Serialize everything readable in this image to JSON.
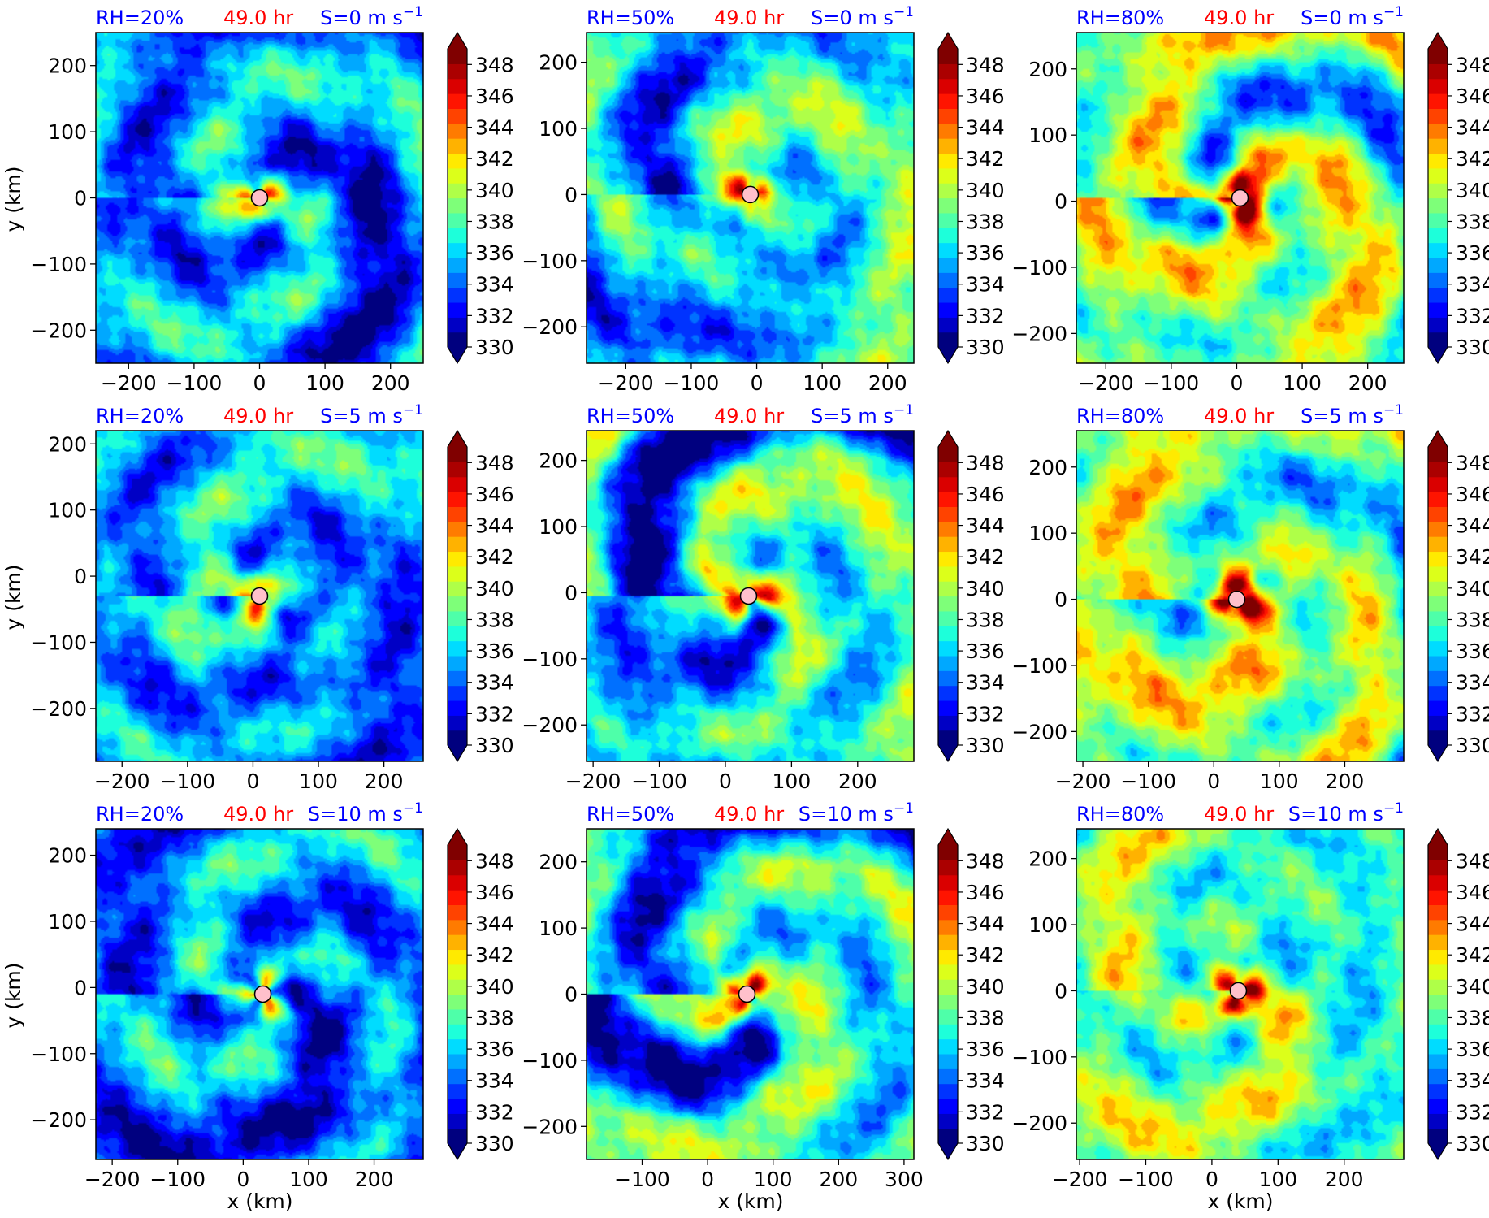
{
  "figure": {
    "xlabel": "x (km)",
    "ylabel": "y (km)"
  },
  "colormap": {
    "levels": [
      330,
      331,
      332,
      333,
      334,
      335,
      336,
      337,
      338,
      339,
      340,
      341,
      342,
      343,
      344,
      345,
      346,
      347,
      348,
      349
    ],
    "tick_labels": [
      "330",
      "332",
      "334",
      "336",
      "338",
      "340",
      "342",
      "344",
      "346",
      "348"
    ],
    "colors": [
      "#00007f",
      "#0000c5",
      "#0000ff",
      "#0033ff",
      "#0070ff",
      "#00a8ff",
      "#00dcff",
      "#1dffda",
      "#4effa9",
      "#7eff79",
      "#afff48",
      "#dcff1a",
      "#ffea00",
      "#ffb200",
      "#ff7b00",
      "#ff4300",
      "#ff1400",
      "#da0000",
      "#ab0000",
      "#800000"
    ],
    "extend": "both"
  },
  "chart_data": [
    {
      "type": "heatmap",
      "rh": "RH=20%",
      "time": "49.0 hr",
      "shear": "S=0 m s",
      "shear_exp": "−1",
      "xlim": [
        -250,
        250
      ],
      "ylim": [
        -250,
        250
      ],
      "xticks": [
        -200,
        -100,
        0,
        100,
        200
      ],
      "yticks": [
        -200,
        -100,
        0,
        100,
        200
      ],
      "center": [
        0,
        0
      ],
      "base": 335.2,
      "core": 341,
      "vmax": 339.5,
      "dry": 333,
      "moist_axis": 2.2
    },
    {
      "type": "heatmap",
      "rh": "RH=50%",
      "time": "49.0 hr",
      "shear": "S=0 m s",
      "shear_exp": "−1",
      "xlim": [
        -260,
        240
      ],
      "ylim": [
        -255,
        245
      ],
      "xticks": [
        -200,
        -100,
        0,
        100,
        200
      ],
      "yticks": [
        -200,
        -100,
        0,
        100,
        200
      ],
      "center": [
        -10,
        0
      ],
      "base": 337.8,
      "core": 343.5,
      "vmax": 341.5,
      "dry": 333,
      "moist_axis": 2.0
    },
    {
      "type": "heatmap",
      "rh": "RH=80%",
      "time": "49.0 hr",
      "shear": "S=0 m s",
      "shear_exp": "−1",
      "xlim": [
        -245,
        255
      ],
      "ylim": [
        -245,
        255
      ],
      "xticks": [
        -200,
        -100,
        0,
        100,
        200
      ],
      "yticks": [
        -200,
        -100,
        0,
        100,
        200
      ],
      "center": [
        5,
        5
      ],
      "base": 340.3,
      "core": 349,
      "vmax": 344.5,
      "dry": 336,
      "moist_axis": 2.5
    },
    {
      "type": "heatmap",
      "rh": "RH=20%",
      "time": "49.0 hr",
      "shear": "S=5 m s",
      "shear_exp": "−1",
      "xlim": [
        -240,
        260
      ],
      "ylim": [
        -280,
        220
      ],
      "xticks": [
        -200,
        -100,
        0,
        100,
        200
      ],
      "yticks": [
        -200,
        -100,
        0,
        100,
        200
      ],
      "center": [
        10,
        -30
      ],
      "base": 335.8,
      "core": 342,
      "vmax": 340,
      "dry": 332.5,
      "moist_axis": 2.5
    },
    {
      "type": "heatmap",
      "rh": "RH=50%",
      "time": "49.0 hr",
      "shear": "S=5 m s",
      "shear_exp": "−1",
      "xlim": [
        -210,
        285
      ],
      "ylim": [
        -255,
        245
      ],
      "xticks": [
        -200,
        -100,
        0,
        100,
        200
      ],
      "yticks": [
        -200,
        -100,
        0,
        100,
        200
      ],
      "center": [
        35,
        -5
      ],
      "base": 338.2,
      "core": 343.5,
      "vmax": 341.5,
      "dry": 331.5,
      "moist_axis": 2.0
    },
    {
      "type": "heatmap",
      "rh": "RH=80%",
      "time": "49.0 hr",
      "shear": "S=5 m s",
      "shear_exp": "−1",
      "xlim": [
        -210,
        290
      ],
      "ylim": [
        -245,
        255
      ],
      "xticks": [
        -200,
        -100,
        0,
        100,
        200
      ],
      "yticks": [
        -200,
        -100,
        0,
        100,
        200
      ],
      "center": [
        35,
        0
      ],
      "base": 340.5,
      "core": 349,
      "vmax": 345,
      "dry": 335.5,
      "moist_axis": 2.5
    },
    {
      "type": "heatmap",
      "rh": "RH=20%",
      "time": "49.0 hr",
      "shear": "S=10 m s",
      "shear_exp": "−1",
      "xlim": [
        -225,
        275
      ],
      "ylim": [
        -260,
        240
      ],
      "xticks": [
        -200,
        -100,
        0,
        100,
        200
      ],
      "yticks": [
        -200,
        -100,
        0,
        100,
        200
      ],
      "center": [
        30,
        -10
      ],
      "base": 335.2,
      "core": 339,
      "vmax": 339,
      "dry": 332,
      "moist_axis": 2.8
    },
    {
      "type": "heatmap",
      "rh": "RH=50%",
      "time": "49.0 hr",
      "shear": "S=10 m s",
      "shear_exp": "−1",
      "xlim": [
        -185,
        315
      ],
      "ylim": [
        -250,
        250
      ],
      "xticks": [
        -100,
        0,
        100,
        200,
        300
      ],
      "yticks": [
        -200,
        -100,
        0,
        100,
        200
      ],
      "center": [
        60,
        0
      ],
      "base": 338,
      "core": 344,
      "vmax": 341.5,
      "dry": 332,
      "moist_axis": 2.3
    },
    {
      "type": "heatmap",
      "rh": "RH=80%",
      "time": "49.0 hr",
      "shear": "S=10 m s",
      "shear_exp": "−1",
      "xlim": [
        -205,
        290
      ],
      "ylim": [
        -255,
        245
      ],
      "xticks": [
        -200,
        -100,
        0,
        100,
        200
      ],
      "yticks": [
        -200,
        -100,
        0,
        100,
        200
      ],
      "center": [
        40,
        0
      ],
      "base": 339.5,
      "core": 346.5,
      "vmax": 344,
      "dry": 335,
      "moist_axis": 2.8
    }
  ]
}
